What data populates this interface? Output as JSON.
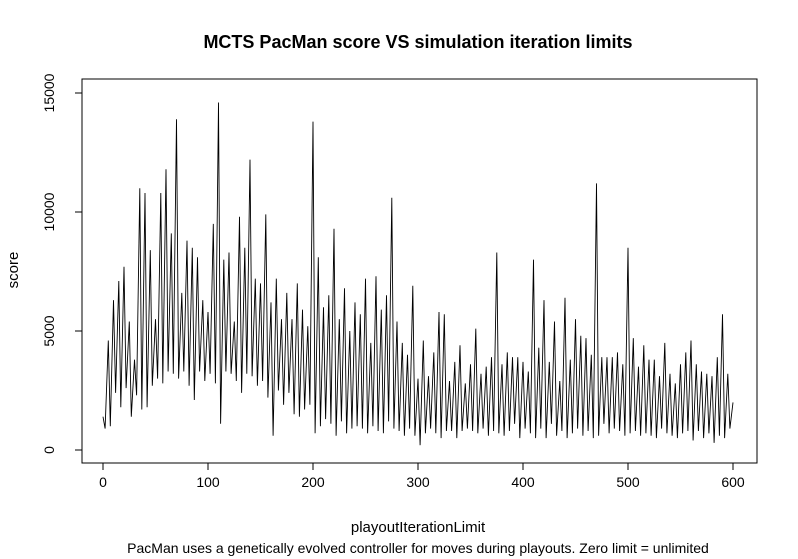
{
  "chart_data": {
    "type": "line",
    "title": "MCTS PacMan score VS simulation iteration limits",
    "xlabel": "playoutIterationLimit",
    "ylabel": "score",
    "subtitle": "PacMan uses a genetically evolved controller for moves during playouts.  Zero limit = unlimited",
    "xlim": [
      0,
      600
    ],
    "ylim": [
      0,
      15000
    ],
    "x_ticks": [
      "0",
      "100",
      "200",
      "300",
      "400",
      "500",
      "600"
    ],
    "y_ticks": [
      "0",
      "5000",
      "10000",
      "15000"
    ],
    "grid": false,
    "legend": "none",
    "line_color": "#000000",
    "series": [
      {
        "x": [
          0,
          5,
          10,
          15,
          20,
          25,
          30,
          35,
          40,
          45,
          50,
          55,
          60,
          65,
          70,
          75,
          80,
          85,
          90,
          95,
          100,
          105,
          110,
          115,
          120,
          125,
          130,
          135,
          140,
          145,
          150,
          155,
          160,
          165,
          170,
          175,
          180,
          185,
          190,
          195,
          200,
          205,
          210,
          215,
          220,
          225,
          230,
          235,
          240,
          245,
          250,
          255,
          260,
          265,
          270,
          275,
          280,
          285,
          290,
          295,
          300,
          305,
          310,
          315,
          320,
          325,
          330,
          335,
          340,
          345,
          350,
          355,
          360,
          365,
          370,
          375,
          380,
          385,
          390,
          395,
          400,
          405,
          410,
          415,
          420,
          425,
          430,
          435,
          440,
          445,
          450,
          455,
          460,
          465,
          470,
          475,
          480,
          485,
          490,
          495,
          500,
          505,
          510,
          515,
          520,
          525,
          530,
          535,
          540,
          545,
          550,
          555,
          560,
          565,
          570,
          575,
          580,
          585,
          590,
          595,
          600
        ],
        "y": [
          1400,
          4600,
          6300,
          7100,
          7700,
          5400,
          3800,
          11000,
          10800,
          8400,
          5500,
          10800,
          11800,
          9100,
          13900,
          6600,
          8800,
          8500,
          8100,
          6300,
          5800,
          9500,
          14600,
          8000,
          8300,
          5400,
          9800,
          8500,
          12200,
          7200,
          7000,
          9900,
          6200,
          7200,
          5500,
          6600,
          5500,
          7000,
          5900,
          5200,
          13800,
          8100,
          6000,
          6500,
          9300,
          5500,
          6800,
          5000,
          6200,
          5700,
          7200,
          4500,
          7300,
          5900,
          6500,
          10600,
          5400,
          4500,
          4000,
          6900,
          3000,
          4600,
          3100,
          4100,
          5800,
          5700,
          2900,
          3700,
          4400,
          2800,
          3600,
          5100,
          3200,
          3500,
          3900,
          8300,
          3600,
          4100,
          3900,
          3900,
          3700,
          3300,
          8000,
          4300,
          6300,
          3700,
          5400,
          2900,
          6400,
          3800,
          5500,
          4800,
          4700,
          4000,
          11200,
          3900,
          3900,
          3900,
          4100,
          3600,
          8500,
          4700,
          3500,
          4400,
          3800,
          3800,
          3100,
          4500,
          3200,
          2800,
          3600,
          4100,
          4600,
          3600,
          3300,
          3200,
          3100,
          3900,
          5700,
          3200,
          2000
        ]
      },
      {
        "x": [
          2,
          7,
          12,
          17,
          22,
          27,
          32,
          37,
          42,
          47,
          52,
          57,
          62,
          67,
          72,
          77,
          82,
          87,
          92,
          97,
          102,
          107,
          112,
          117,
          122,
          127,
          132,
          137,
          142,
          147,
          152,
          157,
          162,
          167,
          172,
          177,
          182,
          187,
          192,
          197,
          202,
          207,
          212,
          217,
          222,
          227,
          232,
          237,
          242,
          247,
          252,
          257,
          262,
          267,
          272,
          277,
          282,
          287,
          292,
          297,
          302,
          307,
          312,
          317,
          322,
          327,
          332,
          337,
          342,
          347,
          352,
          357,
          362,
          367,
          372,
          377,
          382,
          387,
          392,
          397,
          402,
          407,
          412,
          417,
          422,
          427,
          432,
          437,
          442,
          447,
          452,
          457,
          462,
          467,
          472,
          477,
          482,
          487,
          492,
          497,
          502,
          507,
          512,
          517,
          522,
          527,
          532,
          537,
          542,
          547,
          552,
          557,
          562,
          567,
          572,
          577,
          582,
          587,
          592,
          597
        ],
        "y": [
          900,
          1000,
          2400,
          1800,
          2600,
          1400,
          2300,
          1700,
          1800,
          2700,
          3000,
          2800,
          3300,
          3200,
          3000,
          3300,
          2700,
          2100,
          3300,
          2900,
          3200,
          2800,
          1100,
          3300,
          3200,
          2900,
          2400,
          3200,
          3100,
          2700,
          2900,
          2200,
          600,
          2500,
          1900,
          2400,
          1500,
          1400,
          1700,
          1900,
          700,
          1000,
          1300,
          1100,
          600,
          1200,
          700,
          900,
          1000,
          900,
          700,
          1000,
          800,
          700,
          1200,
          900,
          800,
          600,
          900,
          600,
          200,
          700,
          900,
          700,
          500,
          800,
          800,
          500,
          800,
          900,
          800,
          700,
          900,
          600,
          800,
          700,
          600,
          800,
          1100,
          500,
          900,
          700,
          500,
          900,
          500,
          1100,
          600,
          800,
          500,
          700,
          900,
          600,
          800,
          500,
          600,
          1100,
          700,
          900,
          800,
          600,
          700,
          800,
          600,
          700,
          600,
          500,
          900,
          700,
          600,
          500,
          700,
          800,
          400,
          800,
          500,
          700,
          300,
          600,
          500,
          900
        ]
      }
    ]
  }
}
